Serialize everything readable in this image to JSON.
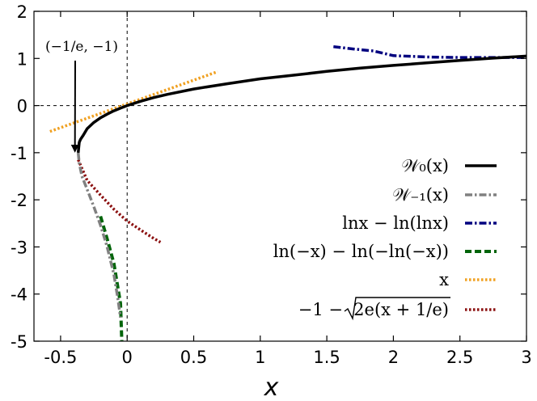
{
  "chart_data": {
    "type": "line",
    "title": "",
    "xlabel": "x",
    "ylabel": "",
    "xlim": [
      -0.7,
      3
    ],
    "ylim": [
      -5,
      2
    ],
    "x_ticks": [
      -0.5,
      0,
      0.5,
      1,
      1.5,
      2,
      2.5,
      3
    ],
    "x_tick_labels": [
      "-0.5",
      "0",
      "0.5",
      "1",
      "1.5",
      "2",
      "2.5",
      "3"
    ],
    "y_ticks": [
      2,
      1,
      0,
      -1,
      -2,
      -3,
      -4,
      -5
    ],
    "y_tick_labels": [
      "2",
      "1",
      "0",
      "-1",
      "-2",
      "-3",
      "-4",
      "-5"
    ],
    "grid": false,
    "legend_position": "bottom-right",
    "annotation": {
      "text": "(−1/e, −1)",
      "x": -0.3679,
      "y": -1
    },
    "series": [
      {
        "name": "W0(x)",
        "legend_label": "𝒲₀(x)",
        "color": "#000000",
        "style": "solid",
        "x": [
          -0.3679,
          -0.36,
          -0.35,
          -0.33,
          -0.3,
          -0.25,
          -0.2,
          -0.15,
          -0.1,
          -0.05,
          0,
          0.1,
          0.2,
          0.3,
          0.5,
          0.75,
          1,
          1.25,
          1.5,
          1.75,
          2,
          2.25,
          2.5,
          2.75,
          3
        ],
        "y": [
          -1,
          -0.781,
          -0.716,
          -0.632,
          -0.489,
          -0.357,
          -0.259,
          -0.183,
          -0.112,
          -0.053,
          0,
          0.091,
          0.169,
          0.237,
          0.352,
          0.462,
          0.567,
          0.645,
          0.726,
          0.794,
          0.853,
          0.905,
          0.958,
          1.007,
          1.049
        ]
      },
      {
        "name": "W-1(x)",
        "legend_label": "𝒲₋₁(x)",
        "color": "#808080",
        "style": "dashdot",
        "x": [
          -0.3679,
          -0.36,
          -0.34,
          -0.3,
          -0.25,
          -0.2,
          -0.15,
          -0.1,
          -0.07,
          -0.05
        ],
        "y": [
          -1,
          -1.22,
          -1.5,
          -1.78,
          -2.15,
          -2.54,
          -3.0,
          -3.58,
          -4.09,
          -4.5
        ]
      },
      {
        "name": "ln x − ln(ln x)",
        "legend_label": "lnx − ln(lnx)",
        "color": "#00007f",
        "style": "dashdot",
        "x": [
          1.55,
          1.7,
          1.85,
          2,
          2.25,
          2.5,
          2.75,
          3
        ],
        "y": [
          1.25,
          1.2,
          1.16,
          1.06,
          1.03,
          1.02,
          1.02,
          1.02
        ]
      },
      {
        "name": "ln(−x) − ln(−ln(−x))",
        "legend_label": "ln(−x) − ln(−ln(−x))",
        "color": "#00640a",
        "style": "dashed",
        "x": [
          -0.2,
          -0.15,
          -0.1,
          -0.05,
          -0.04
        ],
        "y": [
          -2.35,
          -2.83,
          -3.35,
          -4.2,
          -5
        ]
      },
      {
        "name": "x",
        "legend_label": "x",
        "color": "#f0a020",
        "style": "dotted",
        "x": [
          -0.58,
          0.68
        ],
        "y": [
          -0.55,
          0.72
        ]
      },
      {
        "name": "−1 − sqrt(2e(x + 1/e))",
        "legend_label_prefix": "−1 − ",
        "legend_label_radicand": "2e(x + 1/e)",
        "color": "#8b1010",
        "style": "dotted",
        "x": [
          -0.3679,
          -0.3,
          -0.2,
          -0.1,
          0,
          0.1,
          0.2,
          0.25
        ],
        "y": [
          -1.15,
          -1.59,
          -1.9,
          -2.2,
          -2.45,
          -2.64,
          -2.82,
          -2.9
        ]
      }
    ]
  }
}
